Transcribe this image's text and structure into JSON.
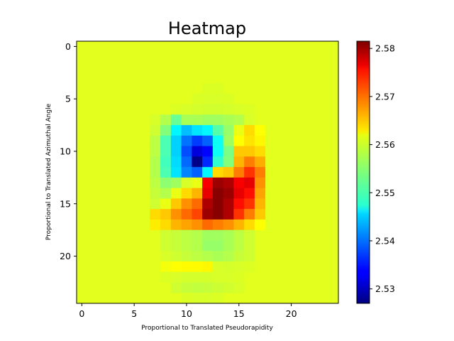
{
  "chart_data": {
    "type": "heatmap",
    "title": "Heatmap",
    "xlabel": "Proportional to Translated Pseudorapidity",
    "ylabel": "Proportional to Translated Azimuthal Angle",
    "rows": 25,
    "cols": 25,
    "xlim": [
      -0.5,
      24.5
    ],
    "ylim": [
      24.5,
      -0.5
    ],
    "x_ticks": [
      0,
      5,
      10,
      15,
      20
    ],
    "y_ticks": [
      0,
      5,
      10,
      15,
      20
    ],
    "background_value": 2.5595,
    "colorbar": {
      "colormap": "jet",
      "min": 2.527,
      "max": 2.5815,
      "ticks": [
        2.53,
        2.54,
        2.55,
        2.56,
        2.57,
        2.58
      ]
    },
    "cells": [
      {
        "r": 4,
        "c": 12,
        "v": 2.5592
      },
      {
        "r": 4,
        "c": 13,
        "v": 2.5592
      },
      {
        "r": 5,
        "c": 11,
        "v": 2.5591
      },
      {
        "r": 5,
        "c": 12,
        "v": 2.559
      },
      {
        "r": 5,
        "c": 13,
        "v": 2.559
      },
      {
        "r": 5,
        "c": 14,
        "v": 2.5591
      },
      {
        "r": 6,
        "c": 9,
        "v": 2.5592
      },
      {
        "r": 6,
        "c": 10,
        "v": 2.559
      },
      {
        "r": 6,
        "c": 11,
        "v": 2.5588
      },
      {
        "r": 6,
        "c": 12,
        "v": 2.5586
      },
      {
        "r": 6,
        "c": 13,
        "v": 2.5586
      },
      {
        "r": 6,
        "c": 14,
        "v": 2.5588
      },
      {
        "r": 6,
        "c": 15,
        "v": 2.559
      },
      {
        "r": 6,
        "c": 16,
        "v": 2.5592
      },
      {
        "r": 7,
        "c": 7,
        "v": 2.559
      },
      {
        "r": 7,
        "c": 8,
        "v": 2.557
      },
      {
        "r": 7,
        "c": 9,
        "v": 2.553
      },
      {
        "r": 7,
        "c": 10,
        "v": 2.5565
      },
      {
        "r": 7,
        "c": 11,
        "v": 2.5565
      },
      {
        "r": 7,
        "c": 12,
        "v": 2.556
      },
      {
        "r": 7,
        "c": 13,
        "v": 2.556
      },
      {
        "r": 7,
        "c": 14,
        "v": 2.5565
      },
      {
        "r": 7,
        "c": 15,
        "v": 2.557
      },
      {
        "r": 7,
        "c": 16,
        "v": 2.559
      },
      {
        "r": 8,
        "c": 7,
        "v": 2.5585
      },
      {
        "r": 8,
        "c": 8,
        "v": 2.5545
      },
      {
        "r": 8,
        "c": 9,
        "v": 2.547
      },
      {
        "r": 8,
        "c": 10,
        "v": 2.544
      },
      {
        "r": 8,
        "c": 11,
        "v": 2.546
      },
      {
        "r": 8,
        "c": 12,
        "v": 2.547
      },
      {
        "r": 8,
        "c": 13,
        "v": 2.552
      },
      {
        "r": 8,
        "c": 14,
        "v": 2.5555
      },
      {
        "r": 8,
        "c": 15,
        "v": 2.56
      },
      {
        "r": 8,
        "c": 16,
        "v": 2.563
      },
      {
        "r": 8,
        "c": 17,
        "v": 2.561
      },
      {
        "r": 9,
        "c": 7,
        "v": 2.5575
      },
      {
        "r": 9,
        "c": 8,
        "v": 2.5515
      },
      {
        "r": 9,
        "c": 9,
        "v": 2.545
      },
      {
        "r": 9,
        "c": 10,
        "v": 2.54
      },
      {
        "r": 9,
        "c": 11,
        "v": 2.537
      },
      {
        "r": 9,
        "c": 12,
        "v": 2.539
      },
      {
        "r": 9,
        "c": 13,
        "v": 2.548
      },
      {
        "r": 9,
        "c": 14,
        "v": 2.556
      },
      {
        "r": 9,
        "c": 15,
        "v": 2.561
      },
      {
        "r": 9,
        "c": 16,
        "v": 2.5625
      },
      {
        "r": 9,
        "c": 17,
        "v": 2.5615
      },
      {
        "r": 10,
        "c": 7,
        "v": 2.5575
      },
      {
        "r": 10,
        "c": 8,
        "v": 2.5515
      },
      {
        "r": 10,
        "c": 9,
        "v": 2.545
      },
      {
        "r": 10,
        "c": 10,
        "v": 2.538
      },
      {
        "r": 10,
        "c": 11,
        "v": 2.532
      },
      {
        "r": 10,
        "c": 12,
        "v": 2.534
      },
      {
        "r": 10,
        "c": 13,
        "v": 2.548
      },
      {
        "r": 10,
        "c": 14,
        "v": 2.554
      },
      {
        "r": 10,
        "c": 15,
        "v": 2.564
      },
      {
        "r": 10,
        "c": 16,
        "v": 2.564
      },
      {
        "r": 10,
        "c": 17,
        "v": 2.563
      },
      {
        "r": 11,
        "c": 7,
        "v": 2.557
      },
      {
        "r": 11,
        "c": 8,
        "v": 2.551
      },
      {
        "r": 11,
        "c": 9,
        "v": 2.5455
      },
      {
        "r": 11,
        "c": 10,
        "v": 2.5395
      },
      {
        "r": 11,
        "c": 11,
        "v": 2.5275
      },
      {
        "r": 11,
        "c": 12,
        "v": 2.536
      },
      {
        "r": 11,
        "c": 13,
        "v": 2.55
      },
      {
        "r": 11,
        "c": 14,
        "v": 2.5545
      },
      {
        "r": 11,
        "c": 15,
        "v": 2.565
      },
      {
        "r": 11,
        "c": 16,
        "v": 2.568
      },
      {
        "r": 11,
        "c": 17,
        "v": 2.5655
      },
      {
        "r": 12,
        "c": 7,
        "v": 2.557
      },
      {
        "r": 12,
        "c": 8,
        "v": 2.5515
      },
      {
        "r": 12,
        "c": 9,
        "v": 2.546
      },
      {
        "r": 12,
        "c": 10,
        "v": 2.541
      },
      {
        "r": 12,
        "c": 11,
        "v": 2.539
      },
      {
        "r": 12,
        "c": 12,
        "v": 2.547
      },
      {
        "r": 12,
        "c": 13,
        "v": 2.563
      },
      {
        "r": 12,
        "c": 14,
        "v": 2.564
      },
      {
        "r": 12,
        "c": 15,
        "v": 2.568
      },
      {
        "r": 12,
        "c": 16,
        "v": 2.572
      },
      {
        "r": 12,
        "c": 17,
        "v": 2.568
      },
      {
        "r": 13,
        "c": 7,
        "v": 2.5575
      },
      {
        "r": 13,
        "c": 8,
        "v": 2.555
      },
      {
        "r": 13,
        "c": 9,
        "v": 2.556
      },
      {
        "r": 13,
        "c": 10,
        "v": 2.559
      },
      {
        "r": 13,
        "c": 11,
        "v": 2.56
      },
      {
        "r": 13,
        "c": 12,
        "v": 2.575
      },
      {
        "r": 13,
        "c": 13,
        "v": 2.58
      },
      {
        "r": 13,
        "c": 14,
        "v": 2.579
      },
      {
        "r": 13,
        "c": 15,
        "v": 2.575
      },
      {
        "r": 13,
        "c": 16,
        "v": 2.576
      },
      {
        "r": 13,
        "c": 17,
        "v": 2.567
      },
      {
        "r": 14,
        "c": 7,
        "v": 2.558
      },
      {
        "r": 14,
        "c": 8,
        "v": 2.557
      },
      {
        "r": 14,
        "c": 9,
        "v": 2.56
      },
      {
        "r": 14,
        "c": 10,
        "v": 2.563
      },
      {
        "r": 14,
        "c": 11,
        "v": 2.565
      },
      {
        "r": 14,
        "c": 12,
        "v": 2.576
      },
      {
        "r": 14,
        "c": 13,
        "v": 2.581
      },
      {
        "r": 14,
        "c": 14,
        "v": 2.58
      },
      {
        "r": 14,
        "c": 15,
        "v": 2.576
      },
      {
        "r": 14,
        "c": 16,
        "v": 2.574
      },
      {
        "r": 14,
        "c": 17,
        "v": 2.566
      },
      {
        "r": 15,
        "c": 7,
        "v": 2.5585
      },
      {
        "r": 15,
        "c": 8,
        "v": 2.56
      },
      {
        "r": 15,
        "c": 9,
        "v": 2.564
      },
      {
        "r": 15,
        "c": 10,
        "v": 2.567
      },
      {
        "r": 15,
        "c": 11,
        "v": 2.569
      },
      {
        "r": 15,
        "c": 12,
        "v": 2.579
      },
      {
        "r": 15,
        "c": 13,
        "v": 2.581
      },
      {
        "r": 15,
        "c": 14,
        "v": 2.579
      },
      {
        "r": 15,
        "c": 15,
        "v": 2.574
      },
      {
        "r": 15,
        "c": 16,
        "v": 2.572
      },
      {
        "r": 15,
        "c": 17,
        "v": 2.565
      },
      {
        "r": 16,
        "c": 7,
        "v": 2.563
      },
      {
        "r": 16,
        "c": 8,
        "v": 2.564
      },
      {
        "r": 16,
        "c": 9,
        "v": 2.567
      },
      {
        "r": 16,
        "c": 10,
        "v": 2.569
      },
      {
        "r": 16,
        "c": 11,
        "v": 2.571
      },
      {
        "r": 16,
        "c": 12,
        "v": 2.58
      },
      {
        "r": 16,
        "c": 13,
        "v": 2.581
      },
      {
        "r": 16,
        "c": 14,
        "v": 2.579
      },
      {
        "r": 16,
        "c": 15,
        "v": 2.572
      },
      {
        "r": 16,
        "c": 16,
        "v": 2.568
      },
      {
        "r": 16,
        "c": 17,
        "v": 2.564
      },
      {
        "r": 17,
        "c": 7,
        "v": 2.562
      },
      {
        "r": 17,
        "c": 8,
        "v": 2.563
      },
      {
        "r": 17,
        "c": 9,
        "v": 2.565
      },
      {
        "r": 17,
        "c": 10,
        "v": 2.566
      },
      {
        "r": 17,
        "c": 11,
        "v": 2.567
      },
      {
        "r": 17,
        "c": 12,
        "v": 2.569
      },
      {
        "r": 17,
        "c": 13,
        "v": 2.568
      },
      {
        "r": 17,
        "c": 14,
        "v": 2.567
      },
      {
        "r": 17,
        "c": 15,
        "v": 2.565
      },
      {
        "r": 17,
        "c": 16,
        "v": 2.563
      },
      {
        "r": 17,
        "c": 17,
        "v": 2.561
      },
      {
        "r": 18,
        "c": 8,
        "v": 2.5585
      },
      {
        "r": 18,
        "c": 9,
        "v": 2.558
      },
      {
        "r": 18,
        "c": 10,
        "v": 2.5575
      },
      {
        "r": 18,
        "c": 11,
        "v": 2.557
      },
      {
        "r": 18,
        "c": 12,
        "v": 2.556
      },
      {
        "r": 18,
        "c": 13,
        "v": 2.556
      },
      {
        "r": 18,
        "c": 14,
        "v": 2.5565
      },
      {
        "r": 18,
        "c": 15,
        "v": 2.5575
      },
      {
        "r": 18,
        "c": 16,
        "v": 2.5585
      },
      {
        "r": 19,
        "c": 8,
        "v": 2.5585
      },
      {
        "r": 19,
        "c": 9,
        "v": 2.558
      },
      {
        "r": 19,
        "c": 10,
        "v": 2.5575
      },
      {
        "r": 19,
        "c": 11,
        "v": 2.557
      },
      {
        "r": 19,
        "c": 12,
        "v": 2.5555
      },
      {
        "r": 19,
        "c": 13,
        "v": 2.5555
      },
      {
        "r": 19,
        "c": 14,
        "v": 2.5565
      },
      {
        "r": 19,
        "c": 15,
        "v": 2.5575
      },
      {
        "r": 19,
        "c": 16,
        "v": 2.5585
      },
      {
        "r": 20,
        "c": 8,
        "v": 2.559
      },
      {
        "r": 20,
        "c": 9,
        "v": 2.5585
      },
      {
        "r": 20,
        "c": 10,
        "v": 2.558
      },
      {
        "r": 20,
        "c": 11,
        "v": 2.5575
      },
      {
        "r": 20,
        "c": 12,
        "v": 2.557
      },
      {
        "r": 20,
        "c": 13,
        "v": 2.5565
      },
      {
        "r": 20,
        "c": 14,
        "v": 2.557
      },
      {
        "r": 20,
        "c": 15,
        "v": 2.558
      },
      {
        "r": 20,
        "c": 16,
        "v": 2.5585
      },
      {
        "r": 21,
        "c": 8,
        "v": 2.5605
      },
      {
        "r": 21,
        "c": 9,
        "v": 2.561
      },
      {
        "r": 21,
        "c": 10,
        "v": 2.5612
      },
      {
        "r": 21,
        "c": 11,
        "v": 2.5612
      },
      {
        "r": 21,
        "c": 12,
        "v": 2.5615
      },
      {
        "r": 21,
        "c": 13,
        "v": 2.559
      },
      {
        "r": 21,
        "c": 14,
        "v": 2.5588
      },
      {
        "r": 21,
        "c": 15,
        "v": 2.559
      },
      {
        "r": 21,
        "c": 16,
        "v": 2.5592
      },
      {
        "r": 22,
        "c": 8,
        "v": 2.5592
      },
      {
        "r": 22,
        "c": 9,
        "v": 2.559
      },
      {
        "r": 22,
        "c": 10,
        "v": 2.5588
      },
      {
        "r": 22,
        "c": 11,
        "v": 2.5588
      },
      {
        "r": 22,
        "c": 12,
        "v": 2.5588
      },
      {
        "r": 22,
        "c": 13,
        "v": 2.559
      },
      {
        "r": 22,
        "c": 14,
        "v": 2.559
      },
      {
        "r": 22,
        "c": 15,
        "v": 2.5592
      },
      {
        "r": 23,
        "c": 9,
        "v": 2.5585
      },
      {
        "r": 23,
        "c": 10,
        "v": 2.558
      },
      {
        "r": 23,
        "c": 11,
        "v": 2.5578
      },
      {
        "r": 23,
        "c": 12,
        "v": 2.558
      },
      {
        "r": 23,
        "c": 13,
        "v": 2.5583
      },
      {
        "r": 23,
        "c": 14,
        "v": 2.5586
      },
      {
        "r": 23,
        "c": 15,
        "v": 2.559
      },
      {
        "r": 24,
        "c": 10,
        "v": 2.5592
      },
      {
        "r": 24,
        "c": 11,
        "v": 2.559
      },
      {
        "r": 24,
        "c": 12,
        "v": 2.559
      },
      {
        "r": 24,
        "c": 13,
        "v": 2.5592
      }
    ]
  }
}
